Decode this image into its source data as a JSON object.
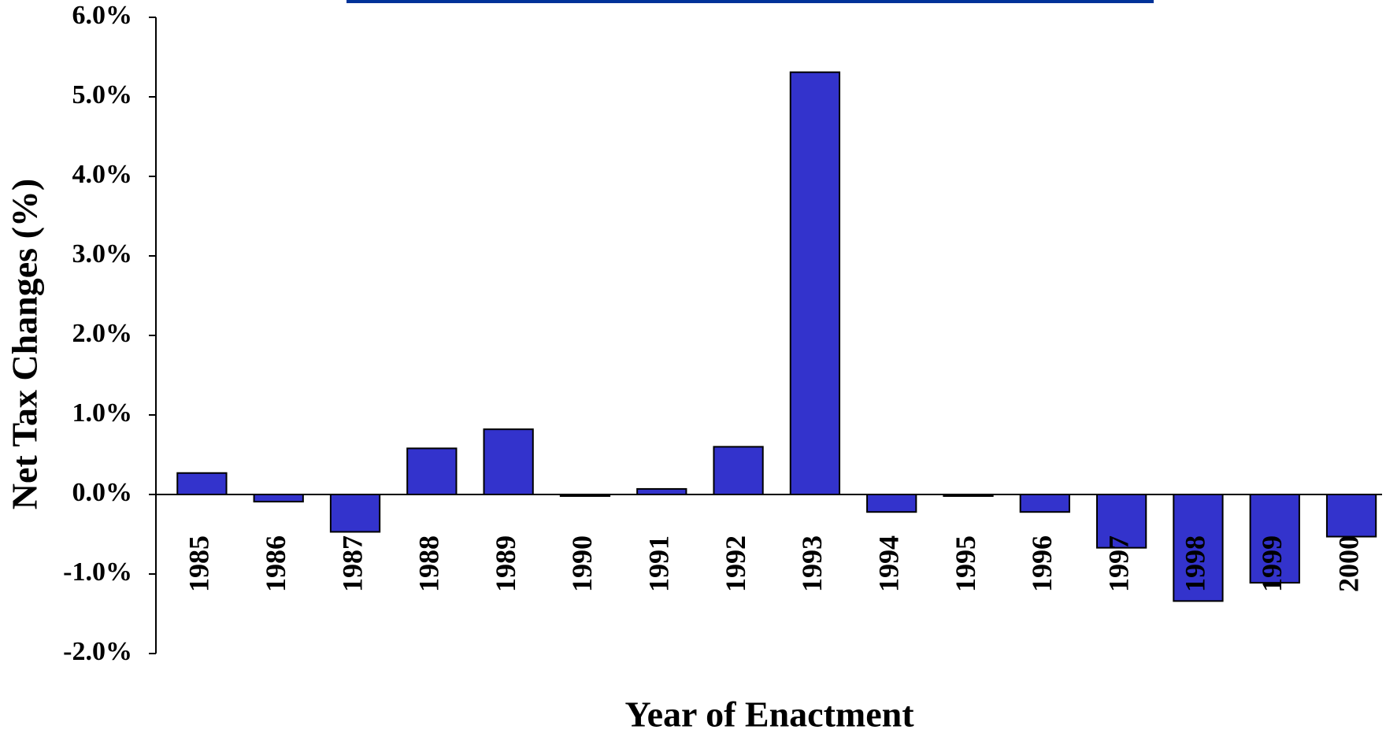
{
  "chart_data": {
    "type": "bar",
    "categories": [
      "1985",
      "1986",
      "1987",
      "1988",
      "1989",
      "1990",
      "1991",
      "1992",
      "1993",
      "1994",
      "1995",
      "1996",
      "1997",
      "1998",
      "1999",
      "2000"
    ],
    "values": [
      0.27,
      -0.09,
      -0.47,
      0.58,
      0.82,
      -0.02,
      0.07,
      0.6,
      5.31,
      -0.22,
      -0.02,
      -0.22,
      -0.67,
      -1.34,
      -1.11,
      -0.53
    ],
    "color": "#3333cc",
    "ylabel": "Net Tax Changes (%)",
    "xlabel": "Year of Enactment",
    "ylim": [
      -2,
      6
    ],
    "yticks": [
      {
        "value": -2,
        "label": "-2.0%"
      },
      {
        "value": -1,
        "label": "-1.0%"
      },
      {
        "value": 0,
        "label": "0.0%"
      },
      {
        "value": 1,
        "label": "1.0%"
      },
      {
        "value": 2,
        "label": "2.0%"
      },
      {
        "value": 3,
        "label": "3.0%"
      },
      {
        "value": 4,
        "label": "4.0%"
      },
      {
        "value": 5,
        "label": "5.0%"
      },
      {
        "value": 6,
        "label": "6.0%"
      }
    ],
    "grid": false
  }
}
